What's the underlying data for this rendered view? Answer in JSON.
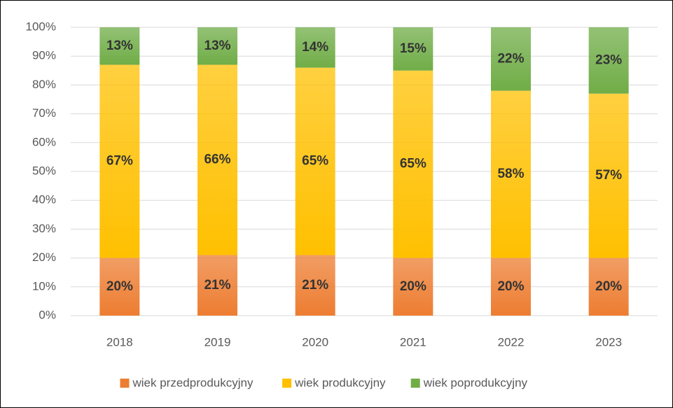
{
  "chart_data": {
    "type": "stacked_bar_100",
    "categories": [
      "2018",
      "2019",
      "2020",
      "2021",
      "2022",
      "2023"
    ],
    "series": [
      {
        "name": "wiek przedprodukcyjny",
        "color": "#ed7d31",
        "values": [
          20,
          21,
          21,
          20,
          20,
          20
        ],
        "value_labels": [
          "20%",
          "21%",
          "21%",
          "20%",
          "20%",
          "20%"
        ]
      },
      {
        "name": "wiek produkcyjny",
        "color": "#ffc000",
        "values": [
          67,
          66,
          65,
          65,
          58,
          57
        ],
        "value_labels": [
          "67%",
          "66%",
          "65%",
          "65%",
          "58%",
          "57%"
        ]
      },
      {
        "name": "wiek poprodukcyjny",
        "color": "#70ad47",
        "values": [
          13,
          13,
          14,
          15,
          22,
          23
        ],
        "value_labels": [
          "13%",
          "13%",
          "14%",
          "15%",
          "22%",
          "23%"
        ]
      }
    ],
    "ylim": [
      0,
      100
    ],
    "yticks": [
      {
        "value": 0,
        "label": "0%"
      },
      {
        "value": 10,
        "label": "10%"
      },
      {
        "value": 20,
        "label": "20%"
      },
      {
        "value": 30,
        "label": "30%"
      },
      {
        "value": 40,
        "label": "40%"
      },
      {
        "value": 50,
        "label": "50%"
      },
      {
        "value": 60,
        "label": "60%"
      },
      {
        "value": 70,
        "label": "70%"
      },
      {
        "value": 80,
        "label": "80%"
      },
      {
        "value": 90,
        "label": "90%"
      },
      {
        "value": 100,
        "label": "100%"
      }
    ],
    "grid": true,
    "legend": "bottom"
  }
}
